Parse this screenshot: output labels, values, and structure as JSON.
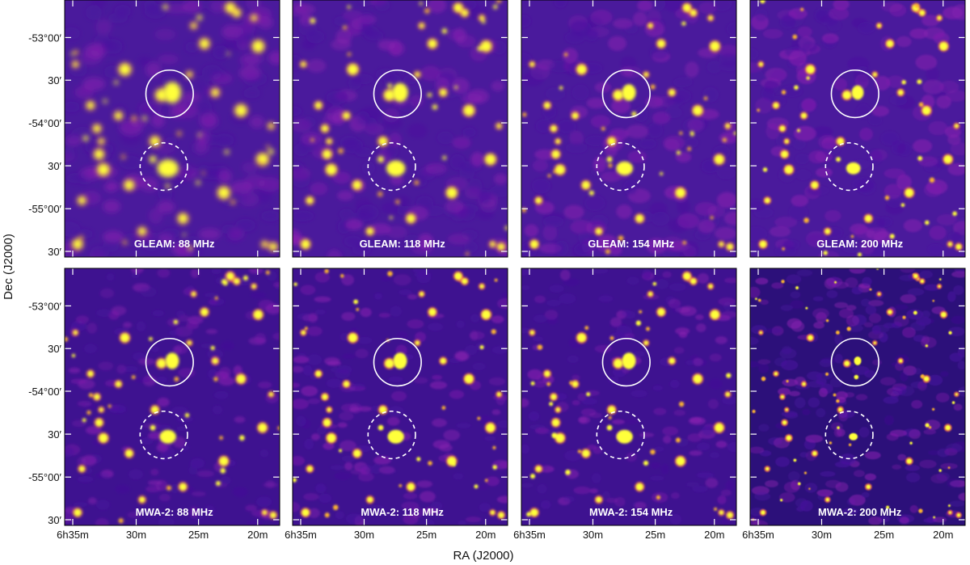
{
  "figure": {
    "xlabel": "RA (J2000)",
    "ylabel": "Dec (J2000)"
  },
  "chart_data": {
    "type": "heatmap",
    "layout": {
      "rows": 2,
      "cols": 4
    },
    "colormap": [
      "#2a0a6e",
      "#4a12a0",
      "#8a1fb0",
      "#c8359a",
      "#ef6a4e",
      "#fbb333",
      "#ffff3b"
    ],
    "x_ticks": [
      "6h35m",
      "30m",
      "25m",
      "20m"
    ],
    "y_ticks": [
      "-53°00′",
      "30′",
      "-54°00′",
      "30′",
      "-55°00′",
      "30′"
    ],
    "panels": [
      {
        "label": "GLEAM: 88 MHz",
        "survey": "GLEAM",
        "freq_mhz": 88
      },
      {
        "label": "GLEAM: 118 MHz",
        "survey": "GLEAM",
        "freq_mhz": 118
      },
      {
        "label": "GLEAM: 154 MHz",
        "survey": "GLEAM",
        "freq_mhz": 154
      },
      {
        "label": "GLEAM: 200 MHz",
        "survey": "GLEAM",
        "freq_mhz": 200
      },
      {
        "label": "MWA-2: 88 MHz",
        "survey": "MWA-2",
        "freq_mhz": 88
      },
      {
        "label": "MWA-2: 118 MHz",
        "survey": "MWA-2",
        "freq_mhz": 118
      },
      {
        "label": "MWA-2: 154 MHz",
        "survey": "MWA-2",
        "freq_mhz": 154
      },
      {
        "label": "MWA-2: 200 MHz",
        "survey": "MWA-2",
        "freq_mhz": 200
      }
    ],
    "circles": [
      {
        "style": "solid"
      },
      {
        "style": "dashed"
      }
    ]
  }
}
